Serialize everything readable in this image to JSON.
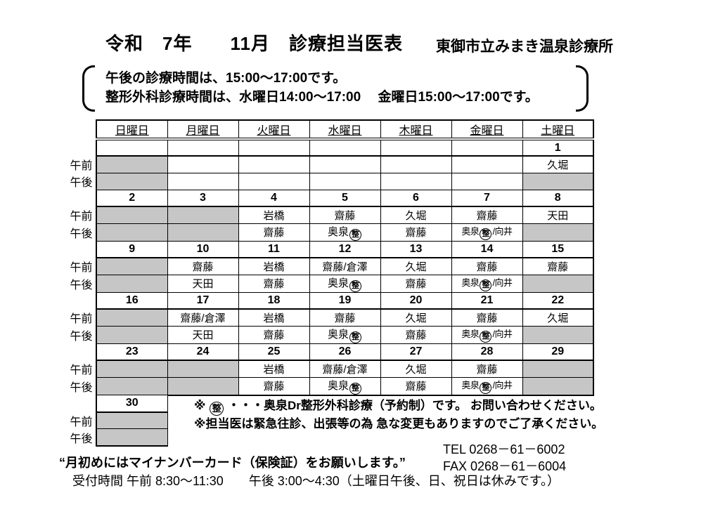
{
  "header": {
    "title": "令和　7年　　11月　診療担当医表",
    "clinic": "東御市立みまき温泉診療所"
  },
  "notice": {
    "line1": "午後の診療時間は、15:00～17:00です。",
    "line2": "整形外科診療時間は、水曜日14:00～17:00　 金曜日15:00～17:00です。"
  },
  "calendar": {
    "day_headers": [
      "日曜日",
      "月曜日",
      "火曜日",
      "水曜日",
      "木曜日",
      "金曜日",
      "土曜日"
    ],
    "am_label": "午前",
    "pm_label": "午後",
    "weeks": [
      {
        "dates": [
          "",
          "",
          "",
          "",
          "",
          "",
          "1"
        ],
        "am": [
          "",
          "",
          "",
          "",
          "",
          "",
          "久堀"
        ],
        "pm": [
          "",
          "",
          "",
          "",
          "",
          "",
          ""
        ]
      },
      {
        "dates": [
          "2",
          "3",
          "4",
          "5",
          "6",
          "7",
          "8"
        ],
        "am": [
          "",
          "",
          "岩橋",
          "齋藤",
          "久堀",
          "齋藤",
          "天田"
        ],
        "pm": [
          "",
          "",
          "齋藤",
          "奥泉[整]",
          "齋藤",
          "奥泉[整]/向井",
          ""
        ]
      },
      {
        "dates": [
          "9",
          "10",
          "11",
          "12",
          "13",
          "14",
          "15"
        ],
        "am": [
          "",
          "齋藤",
          "岩橋",
          "齋藤/倉澤",
          "久堀",
          "齋藤",
          "齋藤"
        ],
        "pm": [
          "",
          "天田",
          "齋藤",
          "奥泉[整]",
          "齋藤",
          "奥泉[整]/向井",
          ""
        ]
      },
      {
        "dates": [
          "16",
          "17",
          "18",
          "19",
          "20",
          "21",
          "22"
        ],
        "am": [
          "",
          "齋藤/倉澤",
          "岩橋",
          "齋藤",
          "久堀",
          "齋藤",
          "久堀"
        ],
        "pm": [
          "",
          "天田",
          "齋藤",
          "奥泉[整]",
          "齋藤",
          "奥泉[整]/向井",
          ""
        ]
      },
      {
        "dates": [
          "23",
          "24",
          "25",
          "26",
          "27",
          "28",
          "29"
        ],
        "am": [
          "",
          "",
          "岩橋",
          "齋藤/倉澤",
          "久堀",
          "齋藤",
          ""
        ],
        "pm": [
          "",
          "",
          "齋藤",
          "奥泉[整]",
          "齋藤",
          "奥泉[整]/向井",
          ""
        ]
      }
    ],
    "week6": {
      "date": "30",
      "am": "",
      "pm": ""
    }
  },
  "notes": {
    "note1": "※ [整] ・・・奥泉Dr整形外科診療（予約制）です。 お問い合わせください。",
    "note2": "※担当医は緊急往診、出張等の為 急な変更もありますのでご了承ください。"
  },
  "footer": {
    "tel": "TEL 0268－61－6002",
    "fax": "FAX 0268－61－6004",
    "reminder": "“月初めにはマイナンバーカード（保険証）をお願いします。”",
    "hours": "受付時間 午前 8:30～11:30　　午後 3:00～4:30（土曜日午後、日、祝日は休みです。）"
  },
  "colors": {
    "closed_cell": "#c6c6c6",
    "text": "#000000",
    "background": "#ffffff"
  }
}
